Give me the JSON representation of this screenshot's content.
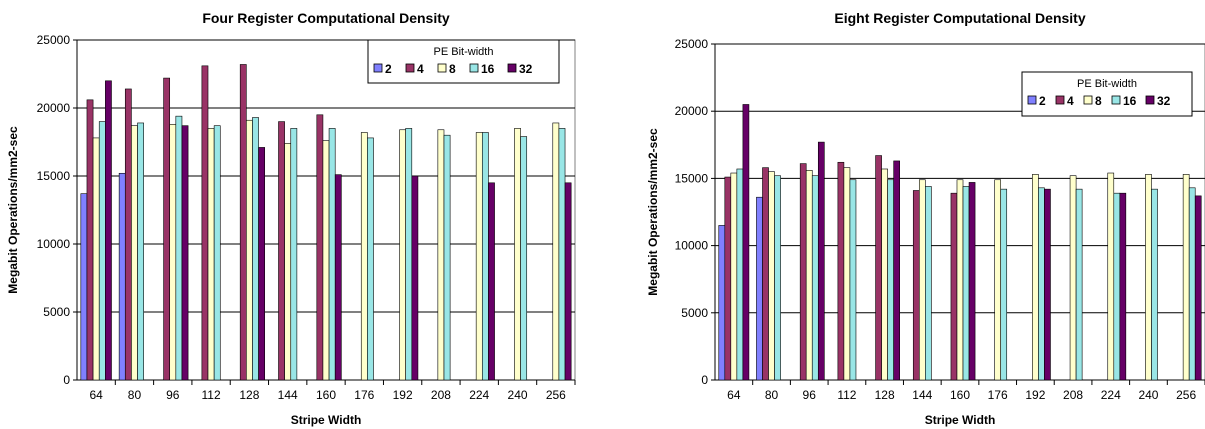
{
  "chart_data": [
    {
      "type": "bar",
      "title": "Four Register Computational Density",
      "xlabel": "Stripe Width",
      "ylabel": "Megabit Operations/mm2-sec",
      "ylim": [
        0,
        25000
      ],
      "yticks": [
        0,
        5000,
        10000,
        15000,
        20000,
        25000
      ],
      "grid": "horizontal",
      "legend_title": "PE Bit-width",
      "legend_position": "top-right",
      "categories": [
        "64",
        "80",
        "96",
        "112",
        "128",
        "144",
        "160",
        "176",
        "192",
        "208",
        "224",
        "240",
        "256"
      ],
      "series": [
        {
          "name": "2",
          "color": "#8080ff",
          "values": [
            13700,
            15200,
            null,
            null,
            null,
            null,
            null,
            null,
            null,
            null,
            null,
            null,
            null
          ]
        },
        {
          "name": "4",
          "color": "#993366",
          "values": [
            20600,
            21400,
            22200,
            23100,
            23200,
            19000,
            19500,
            null,
            null,
            null,
            null,
            null,
            null
          ]
        },
        {
          "name": "8",
          "color": "#ffffcc",
          "values": [
            17800,
            18700,
            18800,
            18500,
            19100,
            17400,
            17600,
            18200,
            18400,
            18400,
            18200,
            18500,
            18900
          ]
        },
        {
          "name": "16",
          "color": "#99e6e6",
          "values": [
            19000,
            18900,
            19400,
            18700,
            19300,
            18500,
            18500,
            17800,
            18500,
            18000,
            18200,
            17900,
            18500
          ]
        },
        {
          "name": "32",
          "color": "#660066",
          "values": [
            22000,
            null,
            18700,
            null,
            17100,
            null,
            15100,
            null,
            15000,
            null,
            14500,
            null,
            14500
          ]
        }
      ]
    },
    {
      "type": "bar",
      "title": "Eight Register Computational Density",
      "xlabel": "Stripe Width",
      "ylabel": "Megabit Operations/mm2-sec",
      "ylim": [
        0,
        25000
      ],
      "yticks": [
        0,
        5000,
        10000,
        15000,
        20000,
        25000
      ],
      "grid": "horizontal",
      "legend_title": "PE Bit-width",
      "legend_position": "top-right",
      "categories": [
        "64",
        "80",
        "96",
        "112",
        "128",
        "144",
        "160",
        "176",
        "192",
        "208",
        "224",
        "240",
        "256"
      ],
      "series": [
        {
          "name": "2",
          "color": "#8080ff",
          "values": [
            11500,
            13600,
            null,
            null,
            null,
            null,
            null,
            null,
            null,
            null,
            null,
            null,
            null
          ]
        },
        {
          "name": "4",
          "color": "#993366",
          "values": [
            15100,
            15800,
            16100,
            16200,
            16700,
            14100,
            13900,
            null,
            null,
            null,
            null,
            null,
            null
          ]
        },
        {
          "name": "8",
          "color": "#ffffcc",
          "values": [
            15400,
            15500,
            15600,
            15800,
            15700,
            14900,
            14900,
            14900,
            15300,
            15200,
            15400,
            15300,
            15300
          ]
        },
        {
          "name": "16",
          "color": "#99e6e6",
          "values": [
            15700,
            15200,
            15200,
            14900,
            14900,
            14400,
            14400,
            14200,
            14300,
            14200,
            13900,
            14200,
            14300
          ]
        },
        {
          "name": "32",
          "color": "#660066",
          "values": [
            20500,
            null,
            17700,
            null,
            16300,
            null,
            14700,
            null,
            14200,
            null,
            13900,
            null,
            13700
          ]
        }
      ]
    }
  ]
}
